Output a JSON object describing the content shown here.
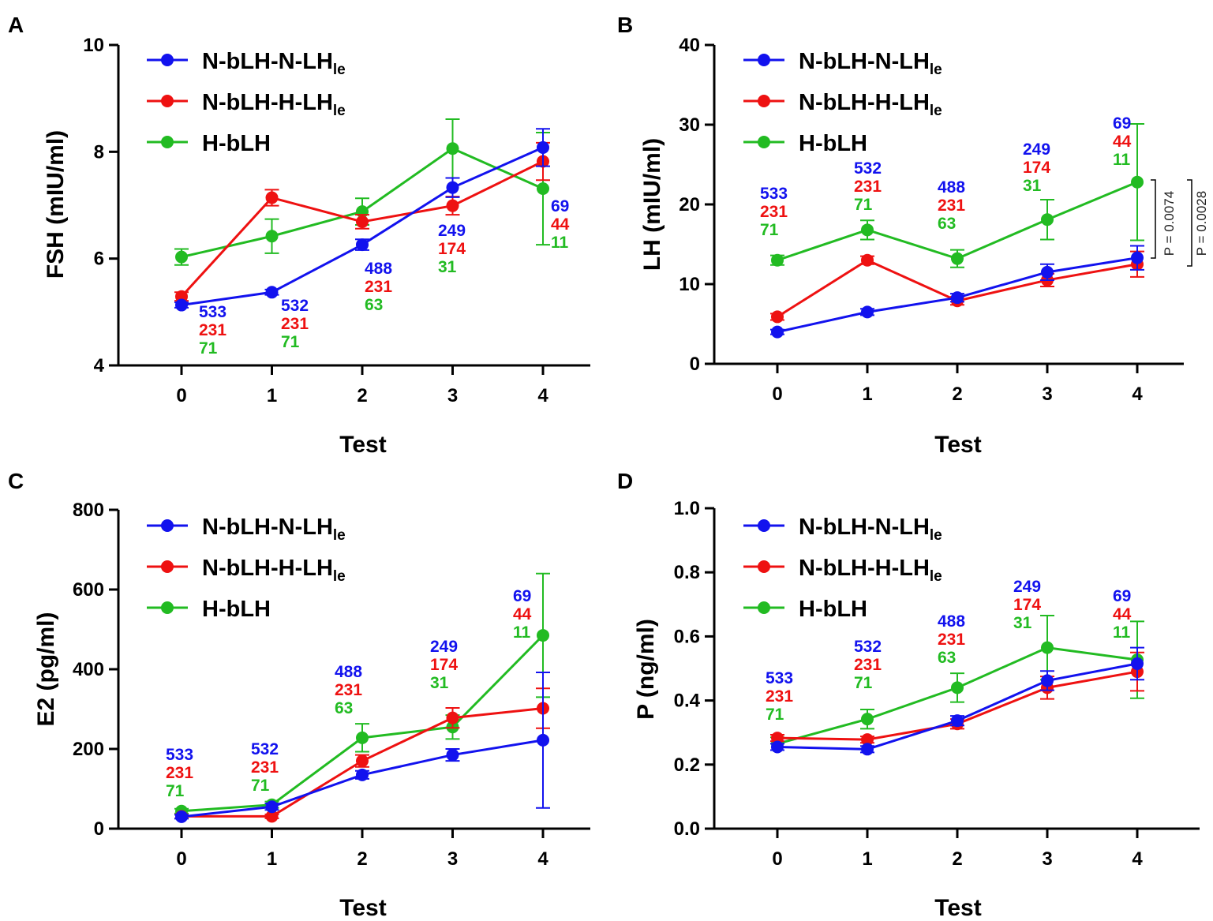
{
  "colors": {
    "blue": "#1212ee",
    "red": "#ee1111",
    "green": "#22bb22",
    "axis": "#000000"
  },
  "legend": [
    {
      "name": "N-bLH-N-LH",
      "sub": "le",
      "color": "#1212ee"
    },
    {
      "name": "N-bLH-H-LH",
      "sub": "le",
      "color": "#ee1111"
    },
    {
      "name": "H-bLH",
      "sub": "",
      "color": "#22bb22"
    }
  ],
  "chart_data": [
    {
      "id": "A",
      "type": "line",
      "ylabel": "FSH (mIU/ml)",
      "xlabel": "Test",
      "x": [
        0,
        1,
        2,
        3,
        4
      ],
      "ylim": [
        4,
        10
      ],
      "yticks": [
        4,
        6,
        8,
        10
      ],
      "ytick_labels": [
        "4",
        "6",
        "8",
        "10"
      ],
      "series": [
        {
          "name": "N-bLH-N-LHle",
          "color": "#1212ee",
          "values": [
            5.13,
            5.37,
            6.26,
            7.33,
            8.08
          ],
          "err": [
            0.05,
            0.05,
            0.1,
            0.18,
            0.35
          ]
        },
        {
          "name": "N-bLH-H-LHle",
          "color": "#ee1111",
          "values": [
            5.29,
            7.14,
            6.69,
            6.99,
            7.82
          ],
          "err": [
            0.08,
            0.15,
            0.13,
            0.17,
            0.35
          ]
        },
        {
          "name": "H-bLH",
          "color": "#22bb22",
          "values": [
            6.03,
            6.42,
            6.88,
            8.06,
            7.31
          ],
          "err": [
            0.15,
            0.32,
            0.25,
            0.55,
            1.05
          ]
        }
      ],
      "n_labels": [
        [
          "533",
          "231",
          "71"
        ],
        [
          "532",
          "231",
          "71"
        ],
        [
          "488",
          "231",
          "63"
        ],
        [
          "249",
          "174",
          "31"
        ],
        [
          "69",
          "44",
          "11"
        ]
      ],
      "p_values": []
    },
    {
      "id": "B",
      "type": "line",
      "ylabel": "LH (mIU/ml)",
      "xlabel": "Test",
      "x": [
        0,
        1,
        2,
        3,
        4
      ],
      "ylim": [
        0,
        40
      ],
      "yticks": [
        0,
        10,
        20,
        30,
        40
      ],
      "ytick_labels": [
        "0",
        "10",
        "20",
        "30",
        "40"
      ],
      "series": [
        {
          "name": "N-bLH-N-LHle",
          "color": "#1212ee",
          "values": [
            4.0,
            6.5,
            8.3,
            11.5,
            13.3
          ],
          "err": [
            0.3,
            0.4,
            0.5,
            1.0,
            1.5
          ]
        },
        {
          "name": "N-bLH-H-LHle",
          "color": "#ee1111",
          "values": [
            5.9,
            13.0,
            7.9,
            10.5,
            12.5
          ],
          "err": [
            0.4,
            0.5,
            0.5,
            0.8,
            1.6
          ]
        },
        {
          "name": "H-bLH",
          "color": "#22bb22",
          "values": [
            13.0,
            16.8,
            13.2,
            18.1,
            22.8
          ],
          "err": [
            0.6,
            1.2,
            1.1,
            2.5,
            7.3
          ]
        }
      ],
      "n_labels": [
        [
          "533",
          "231",
          "71"
        ],
        [
          "532",
          "231",
          "71"
        ],
        [
          "488",
          "231",
          "63"
        ],
        [
          "249",
          "174",
          "31"
        ],
        [
          "69",
          "44",
          "11"
        ]
      ],
      "p_values": [
        "P = 0.0074",
        "P = 0.0028"
      ]
    },
    {
      "id": "C",
      "type": "line",
      "ylabel": "E2 (pg/ml)",
      "xlabel": "Test",
      "x": [
        0,
        1,
        2,
        3,
        4
      ],
      "ylim": [
        0,
        800
      ],
      "yticks": [
        0,
        200,
        400,
        600,
        800
      ],
      "ytick_labels": [
        "0",
        "200",
        "400",
        "600",
        "800"
      ],
      "series": [
        {
          "name": "N-bLH-N-LHle",
          "color": "#1212ee",
          "values": [
            30,
            55,
            135,
            185,
            222
          ],
          "err": [
            5,
            8,
            10,
            15,
            170
          ]
        },
        {
          "name": "N-bLH-H-LHle",
          "color": "#ee1111",
          "values": [
            31,
            31,
            170,
            278,
            302
          ],
          "err": [
            5,
            5,
            15,
            25,
            50
          ]
        },
        {
          "name": "H-bLH",
          "color": "#22bb22",
          "values": [
            44,
            60,
            228,
            255,
            485
          ],
          "err": [
            6,
            8,
            35,
            30,
            155
          ]
        }
      ],
      "n_labels": [
        [
          "533",
          "231",
          "71"
        ],
        [
          "532",
          "231",
          "71"
        ],
        [
          "488",
          "231",
          "63"
        ],
        [
          "249",
          "174",
          "31"
        ],
        [
          "69",
          "44",
          "11"
        ]
      ],
      "p_values": []
    },
    {
      "id": "D",
      "type": "line",
      "ylabel": "P (ng/ml)",
      "xlabel": "Test",
      "x": [
        0,
        1,
        2,
        3,
        4
      ],
      "ylim": [
        0,
        1
      ],
      "yticks": [
        0,
        0.2,
        0.4,
        0.6,
        0.8,
        1.0
      ],
      "ytick_labels": [
        "0.0",
        "0.2",
        "0.4",
        "0.6",
        "0.8",
        "1.0"
      ],
      "series": [
        {
          "name": "N-bLH-N-LHle",
          "color": "#1212ee",
          "values": [
            0.255,
            0.248,
            0.337,
            0.462,
            0.515
          ],
          "err": [
            0.01,
            0.01,
            0.015,
            0.03,
            0.05
          ]
        },
        {
          "name": "N-bLH-H-LHle",
          "color": "#ee1111",
          "values": [
            0.283,
            0.278,
            0.327,
            0.44,
            0.49
          ],
          "err": [
            0.01,
            0.01,
            0.015,
            0.035,
            0.06
          ]
        },
        {
          "name": "H-bLH",
          "color": "#22bb22",
          "values": [
            0.265,
            0.342,
            0.44,
            0.565,
            0.527
          ],
          "err": [
            0.02,
            0.03,
            0.045,
            0.1,
            0.12
          ]
        }
      ],
      "n_labels": [
        [
          "533",
          "231",
          "71"
        ],
        [
          "532",
          "231",
          "71"
        ],
        [
          "488",
          "231",
          "63"
        ],
        [
          "249",
          "174",
          "31"
        ],
        [
          "69",
          "44",
          "11"
        ]
      ],
      "p_values": []
    }
  ]
}
